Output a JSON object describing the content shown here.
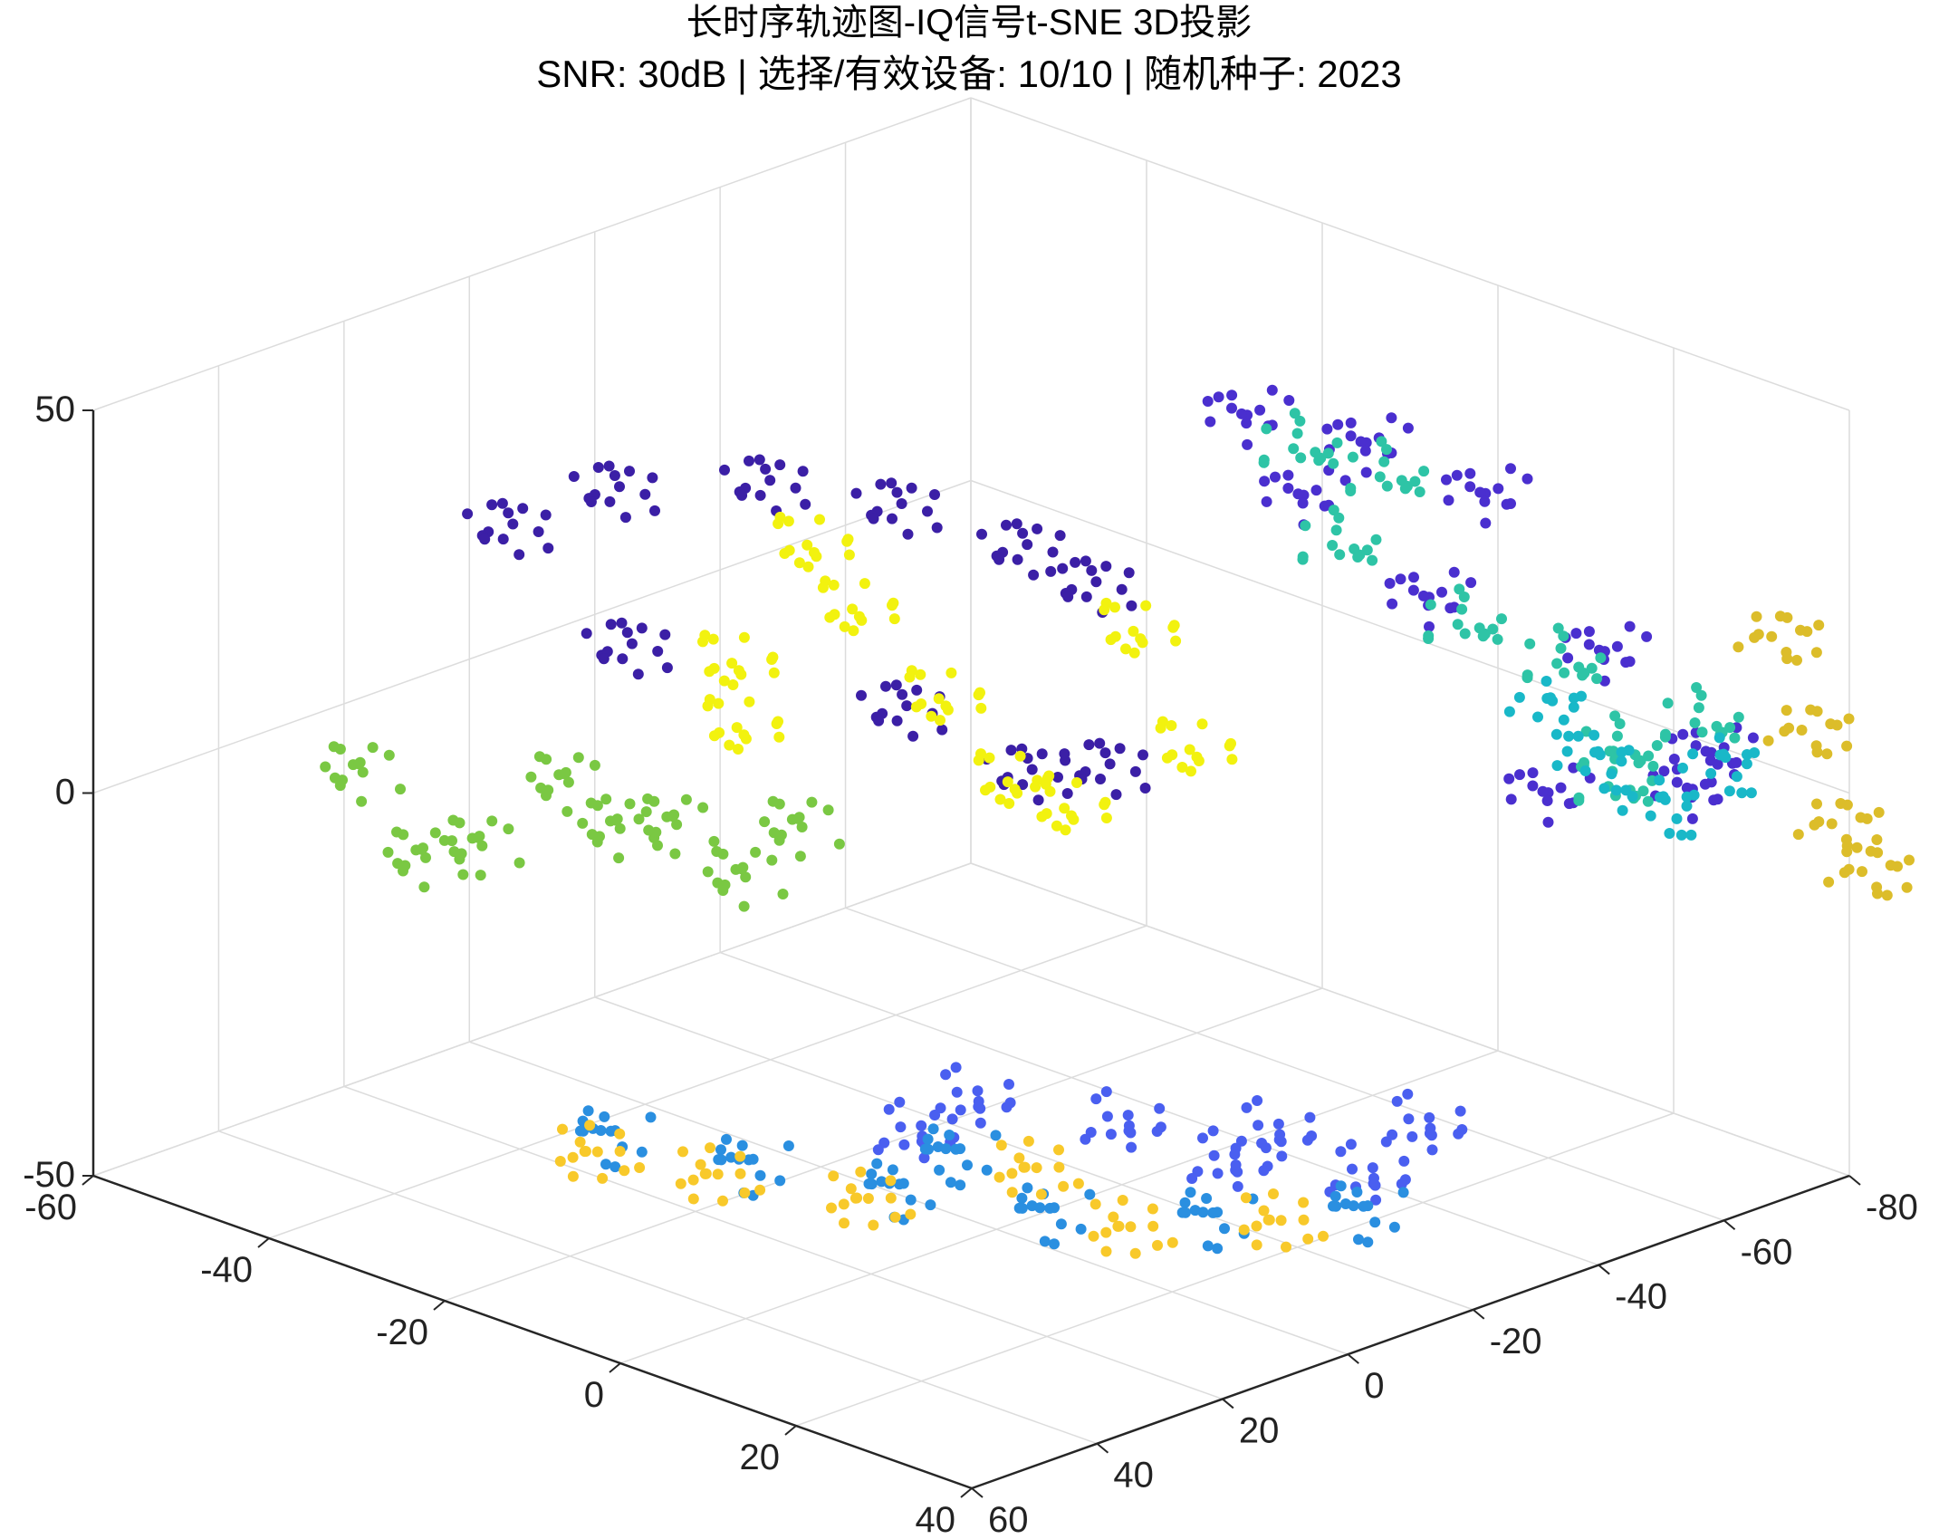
{
  "chart_data": {
    "type": "scatter",
    "title": "长时序轨迹图-IQ信号t-SNE 3D投影",
    "subtitle": "SNR: 30dB | 选择/有效设备: 10/10 | 随机种子: 2023",
    "xlabel": "",
    "ylabel": "",
    "zlabel": "",
    "xlim": [
      -60,
      40
    ],
    "ylim": [
      -80,
      60
    ],
    "zlim": [
      -50,
      50
    ],
    "x_ticks": [
      "-60",
      "-40",
      "-20",
      "0",
      "20",
      "40"
    ],
    "y_ticks": [
      "-80",
      "-60",
      "-40",
      "-20",
      "0",
      "20",
      "40",
      "60"
    ],
    "z_ticks": [
      "-50",
      "0",
      "50"
    ],
    "grid": true,
    "legend": "none",
    "view": "3d",
    "series": [
      {
        "color": "#3b1fa6",
        "points": [
          [
            -45,
            15,
            28
          ],
          [
            -40,
            5,
            32
          ],
          [
            -30,
            -5,
            34
          ],
          [
            -20,
            -12,
            33
          ],
          [
            -10,
            -18,
            30
          ],
          [
            -5,
            -22,
            26
          ],
          [
            -18,
            -10,
            8
          ],
          [
            -8,
            -16,
            2
          ],
          [
            -2,
            -20,
            4
          ],
          [
            -35,
            10,
            15
          ]
        ]
      },
      {
        "color": "#f2f20f",
        "points": [
          [
            -25,
            -5,
            28
          ],
          [
            -22,
            -8,
            20
          ],
          [
            -30,
            0,
            12
          ],
          [
            -15,
            -12,
            10
          ],
          [
            0,
            -22,
            22
          ],
          [
            5,
            -24,
            8
          ],
          [
            -10,
            -16,
            0
          ],
          [
            -5,
            -18,
            -2
          ],
          [
            -28,
            2,
            5
          ]
        ]
      },
      {
        "color": "#7ac843",
        "points": [
          [
            -55,
            25,
            -5
          ],
          [
            -50,
            22,
            -15
          ],
          [
            -45,
            20,
            -12
          ],
          [
            -38,
            16,
            -2
          ],
          [
            -30,
            10,
            -6
          ],
          [
            -25,
            6,
            -12
          ],
          [
            -20,
            4,
            -4
          ],
          [
            -35,
            12,
            -8
          ]
        ]
      },
      {
        "color": "#4a2fcf",
        "points": [
          [
            0,
            -40,
            45
          ],
          [
            10,
            -45,
            44
          ],
          [
            20,
            -50,
            40
          ],
          [
            5,
            -42,
            36
          ],
          [
            15,
            -48,
            25
          ],
          [
            30,
            -55,
            22
          ],
          [
            40,
            -58,
            12
          ],
          [
            35,
            -62,
            4
          ],
          [
            20,
            -60,
            -2
          ]
        ]
      },
      {
        "color": "#2ec4a6",
        "points": [
          [
            5,
            -42,
            42
          ],
          [
            12,
            -46,
            40
          ],
          [
            8,
            -44,
            30
          ],
          [
            18,
            -50,
            22
          ],
          [
            25,
            -56,
            18
          ],
          [
            30,
            -58,
            8
          ],
          [
            28,
            -60,
            2
          ],
          [
            35,
            -64,
            12
          ]
        ]
      },
      {
        "color": "#19b8c8",
        "points": [
          [
            22,
            -58,
            10
          ],
          [
            26,
            -60,
            4
          ],
          [
            32,
            -62,
            0
          ],
          [
            36,
            -66,
            6
          ]
        ]
      },
      {
        "color": "#dcbd2a",
        "points": [
          [
            38,
            -72,
            22
          ],
          [
            40,
            -74,
            10
          ],
          [
            42,
            -76,
            -2
          ],
          [
            44,
            -78,
            -8
          ]
        ]
      },
      {
        "color": "#4a5ff0",
        "points": [
          [
            -10,
            -10,
            -40
          ],
          [
            0,
            -20,
            -42
          ],
          [
            10,
            -30,
            -42
          ],
          [
            20,
            -40,
            -40
          ],
          [
            15,
            -38,
            -48
          ],
          [
            5,
            -30,
            -48
          ],
          [
            -15,
            -8,
            -46
          ]
        ]
      },
      {
        "color": "#2a8fe0",
        "points": [
          [
            -30,
            20,
            -44
          ],
          [
            -20,
            12,
            -46
          ],
          [
            -10,
            2,
            -48
          ],
          [
            0,
            -8,
            -50
          ],
          [
            10,
            -20,
            -50
          ],
          [
            20,
            -30,
            -48
          ],
          [
            -5,
            0,
            -42
          ]
        ]
      },
      {
        "color": "#f8c92a",
        "points": [
          [
            -30,
            22,
            -46
          ],
          [
            -22,
            14,
            -48
          ],
          [
            -12,
            4,
            -50
          ],
          [
            5,
            -14,
            -52
          ],
          [
            15,
            -24,
            -50
          ],
          [
            0,
            -6,
            -44
          ]
        ]
      }
    ]
  }
}
